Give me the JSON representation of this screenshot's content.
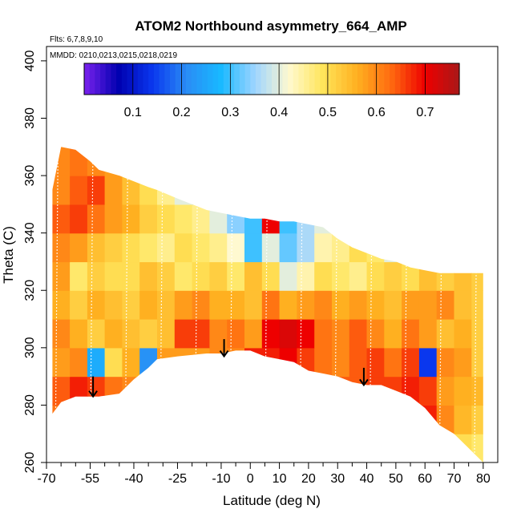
{
  "chart_data": {
    "type": "heatmap",
    "title": "ATOM2 Northbound asymmetry_664_AMP",
    "subtitle_flights": "Flts: 6,7,8,9,10",
    "subtitle_dates": "MMDD: 0210,0213,0215,0218,0219",
    "xlabel": "Latitude (deg N)",
    "ylabel": "Theta (C)",
    "xlim": [
      -70,
      85
    ],
    "ylim": [
      260,
      405
    ],
    "x_ticks_major": [
      -70,
      -55,
      -40,
      -25,
      -10,
      0,
      10,
      20,
      30,
      40,
      50,
      60,
      70,
      80
    ],
    "x_ticks_labels": [
      "-70",
      "-55",
      "-40",
      "-25",
      "-10",
      "0",
      "10",
      "20",
      "30",
      "40",
      "50",
      "60",
      "70",
      "80"
    ],
    "x_ticks_minor": [
      -65,
      -60,
      -50,
      -45,
      -35,
      -30,
      -20,
      -15,
      -5,
      5,
      15,
      25,
      35,
      45,
      55,
      65,
      75
    ],
    "y_ticks": [
      260,
      280,
      300,
      320,
      340,
      360,
      380,
      400
    ],
    "y_ticks_labels": [
      "260",
      "280",
      "300",
      "320",
      "340",
      "360",
      "380",
      "400"
    ],
    "colorbar": {
      "range": [
        0.0,
        0.77
      ],
      "ticks": [
        0.1,
        0.2,
        0.3,
        0.4,
        0.5,
        0.6,
        0.7
      ],
      "tick_labels": [
        "0.1",
        "0.2",
        "0.3",
        "0.4",
        "0.5",
        "0.6",
        "0.7"
      ],
      "colors": [
        "#7b22ee",
        "#0000b0",
        "#0a37ee",
        "#2a8cf5",
        "#18b9ff",
        "#9dd4ff",
        "#fff9d0",
        "#ffe55a",
        "#ffb020",
        "#ff6a10",
        "#ee0000",
        "#a81818"
      ]
    },
    "envelope": {
      "lat": [
        -68,
        -65,
        -60,
        -55,
        -52,
        -45,
        -40,
        -35,
        -32,
        -25,
        -15,
        -10,
        -5,
        0,
        5,
        10,
        15,
        20,
        25,
        30,
        35,
        40,
        45,
        50,
        55,
        60,
        65,
        70,
        75,
        80
      ],
      "theta_top": [
        355,
        370,
        369,
        365,
        362,
        360,
        358,
        356,
        355,
        352,
        348,
        347,
        346,
        345,
        345,
        344,
        344,
        343,
        342,
        338,
        335,
        333,
        331,
        330,
        328,
        327,
        326,
        326,
        326,
        326
      ],
      "theta_bottom": [
        277,
        281,
        283,
        283,
        283,
        284,
        289,
        293,
        296,
        297,
        298,
        298,
        299,
        299,
        297,
        296,
        295,
        292,
        291,
        290,
        288,
        287,
        287,
        285,
        283,
        279,
        273,
        270,
        265,
        260
      ]
    },
    "sample_field": {
      "lat_edges": [
        -68,
        -62,
        -56,
        -50,
        -44,
        -38,
        -32,
        -26,
        -20,
        -14,
        -8,
        -2,
        4,
        10,
        16,
        22,
        28,
        34,
        40,
        46,
        52,
        58,
        64,
        70,
        76,
        82
      ],
      "theta_edges": [
        260,
        270,
        280,
        290,
        300,
        310,
        320,
        330,
        340,
        350,
        360,
        370
      ],
      "values": [
        [
          0.55,
          0.55,
          0.55,
          0.55,
          0.55,
          0.55,
          0.55,
          0.55,
          0.55,
          0.55,
          0.55,
          0.55,
          0.55,
          0.55,
          0.55,
          0.55,
          0.55,
          0.55,
          0.55,
          0.55,
          0.56,
          0.55,
          0.5,
          0.5,
          0.48
        ],
        [
          0.62,
          0.66,
          0.66,
          0.64,
          0.62,
          0.6,
          0.62,
          0.62,
          0.62,
          0.62,
          0.62,
          0.62,
          0.62,
          0.62,
          0.62,
          0.62,
          0.62,
          0.62,
          0.62,
          0.62,
          0.66,
          0.68,
          0.6,
          0.55,
          0.52
        ],
        [
          0.64,
          0.68,
          0.66,
          0.62,
          0.6,
          0.6,
          0.62,
          0.62,
          0.62,
          0.62,
          0.62,
          0.64,
          0.64,
          0.66,
          0.64,
          0.64,
          0.64,
          0.64,
          0.66,
          0.66,
          0.68,
          0.66,
          0.58,
          0.56,
          0.55
        ],
        [
          0.58,
          0.6,
          0.26,
          0.5,
          0.56,
          0.22,
          0.58,
          0.58,
          0.58,
          0.6,
          0.6,
          0.68,
          0.68,
          0.7,
          0.66,
          0.62,
          0.6,
          0.64,
          0.66,
          0.62,
          0.66,
          0.14,
          0.6,
          0.58,
          0.52
        ],
        [
          0.6,
          0.56,
          0.52,
          0.56,
          0.54,
          0.52,
          0.54,
          0.66,
          0.66,
          0.6,
          0.62,
          0.58,
          0.7,
          0.72,
          0.7,
          0.62,
          0.6,
          0.64,
          0.6,
          0.56,
          0.62,
          0.58,
          0.54,
          0.56,
          0.52
        ],
        [
          0.56,
          0.52,
          0.56,
          0.54,
          0.52,
          0.56,
          0.54,
          0.58,
          0.6,
          0.56,
          0.56,
          0.54,
          0.62,
          0.56,
          0.58,
          0.6,
          0.56,
          0.58,
          0.56,
          0.54,
          0.58,
          0.58,
          0.6,
          0.54,
          0.52
        ],
        [
          0.58,
          0.48,
          0.52,
          0.5,
          0.5,
          0.54,
          0.52,
          0.48,
          0.5,
          0.52,
          0.48,
          0.54,
          0.5,
          0.4,
          0.44,
          0.5,
          0.48,
          0.46,
          0.5,
          0.52,
          0.5,
          0.54,
          0.52,
          0.54,
          0.52
        ],
        [
          0.6,
          0.58,
          0.54,
          0.52,
          0.5,
          0.48,
          0.46,
          0.5,
          0.48,
          0.46,
          0.42,
          0.3,
          0.4,
          0.32,
          0.36,
          0.44,
          0.46,
          0.5,
          0.48,
          0.4,
          0.48,
          0.5,
          0.5,
          0.5,
          0.5
        ],
        [
          0.64,
          0.66,
          0.62,
          0.58,
          0.56,
          0.52,
          0.5,
          0.48,
          0.46,
          0.4,
          0.34,
          0.3,
          0.7,
          0.3,
          0.36,
          0.4,
          0.46,
          0.5,
          0.5,
          0.5,
          0.5,
          0.5,
          0.5,
          0.5,
          0.5
        ],
        [
          0.6,
          0.64,
          0.66,
          0.58,
          0.54,
          0.5,
          0.46,
          0.4,
          0.36,
          0.36,
          0.4,
          0.4,
          0.4,
          0.4,
          0.4,
          0.4,
          0.4,
          0.4,
          0.4,
          0.4,
          0.4,
          0.4,
          0.4,
          0.4,
          0.4
        ],
        [
          0.6,
          0.62,
          0.6,
          0.58,
          0.52,
          0.48,
          0.44,
          0.4,
          0.4,
          0.4,
          0.4,
          0.4,
          0.4,
          0.4,
          0.4,
          0.4,
          0.4,
          0.4,
          0.4,
          0.4,
          0.4,
          0.4,
          0.4,
          0.4,
          0.4
        ]
      ]
    },
    "arrows": [
      {
        "lat": -54,
        "theta_top": 290,
        "theta_bottom": 283
      },
      {
        "lat": -9,
        "theta_top": 303,
        "theta_bottom": 297
      },
      {
        "lat": 39,
        "theta_top": 293,
        "theta_bottom": 287
      }
    ],
    "grid": false
  }
}
